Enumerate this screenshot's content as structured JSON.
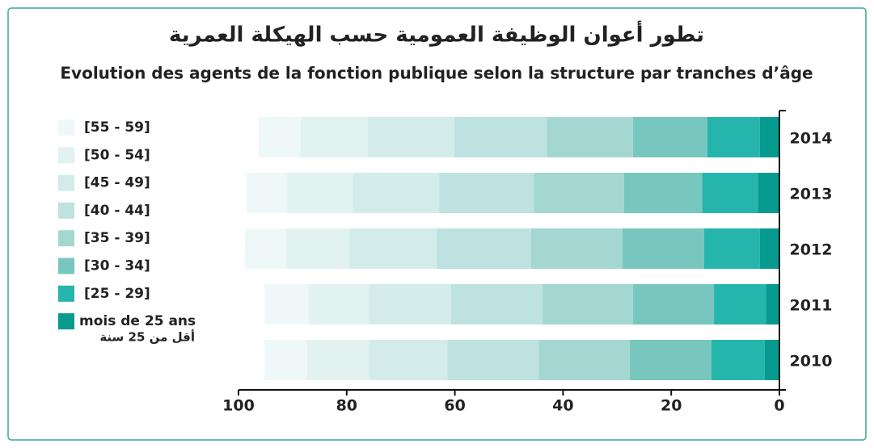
{
  "chart_data": {
    "type": "stacked_barh",
    "title": "تطور أعوان الوظيفة العمومية حسب الهيكلة العمرية",
    "subtitle": "Evolution des agents de la fonction publique selon la structure par tranches d’âge",
    "categories": [
      "2014",
      "2013",
      "2012",
      "2011",
      "2010"
    ],
    "series": [
      {
        "name": "mois de 25 ans",
        "name_ar": "أقل من 25 سنة",
        "color": "#079a8f",
        "values": [
          3.6,
          4.0,
          3.6,
          2.5,
          2.7
        ]
      },
      {
        "name": "[25 - 29]",
        "color": "#25b5ad",
        "values": [
          9.7,
          10.3,
          10.3,
          9.6,
          9.9
        ]
      },
      {
        "name": "[30 - 34]",
        "color": "#77c7bf",
        "values": [
          13.8,
          14.4,
          15.1,
          15.0,
          15.1
        ]
      },
      {
        "name": "[35 - 39]",
        "color": "#a4d7d2",
        "values": [
          15.9,
          16.7,
          16.9,
          16.7,
          16.8
        ]
      },
      {
        "name": "[40 - 44]",
        "color": "#bde2df",
        "values": [
          17.1,
          17.5,
          17.5,
          16.9,
          16.9
        ]
      },
      {
        "name": "[45 - 49]",
        "color": "#d3ecea",
        "values": [
          16.0,
          16.0,
          16.1,
          15.2,
          14.5
        ]
      },
      {
        "name": "[50 - 54]",
        "color": "#e1f2f1",
        "values": [
          12.4,
          12.1,
          11.7,
          11.2,
          11.4
        ]
      },
      {
        "name": "[55 - 59]",
        "color": "#eef8f8",
        "values": [
          7.8,
          7.5,
          7.6,
          8.1,
          7.9
        ]
      }
    ],
    "xlim": [
      0,
      100
    ],
    "xticks": [
      0,
      20,
      40,
      60,
      80,
      100
    ],
    "x_reversed": true
  }
}
